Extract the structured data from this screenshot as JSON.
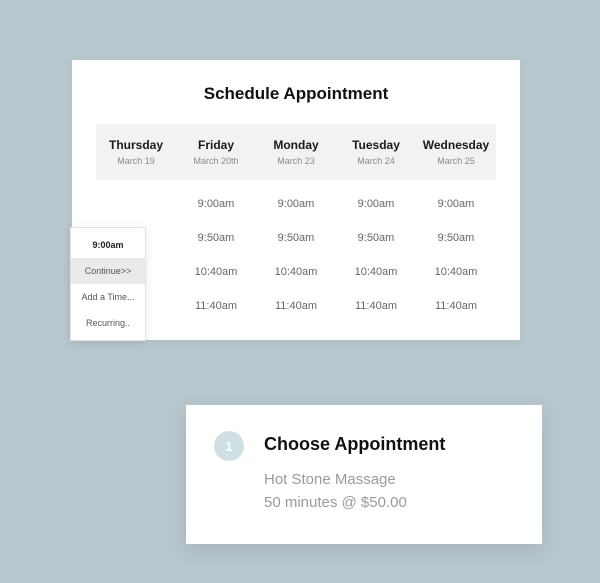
{
  "schedule": {
    "title": "Schedule Appointment",
    "days": [
      {
        "name": "Thursday",
        "date": "March 19"
      },
      {
        "name": "Friday",
        "date": "March 20th"
      },
      {
        "name": "Monday",
        "date": "March 23"
      },
      {
        "name": "Tuesday",
        "date": "March 24"
      },
      {
        "name": "Wednesday",
        "date": "March 25"
      }
    ],
    "timeRows": [
      "9:00am",
      "9:50am",
      "10:40am",
      "11:40am"
    ]
  },
  "popover": {
    "selected": "9:00am",
    "continue": "Continue>>",
    "addTime": "Add a Time...",
    "recurring": "Recurring.."
  },
  "choose": {
    "step": "1",
    "title": "Choose Appointment",
    "service": "Hot Stone Massage",
    "meta": "50 minutes @ $50.00"
  },
  "colors": {
    "pageBg": "#b7c7cd",
    "cardBg": "#ffffff",
    "headerBg": "#f2f2f2",
    "badgeBg": "#cfe0e5",
    "muted": "#9b9b9b"
  }
}
